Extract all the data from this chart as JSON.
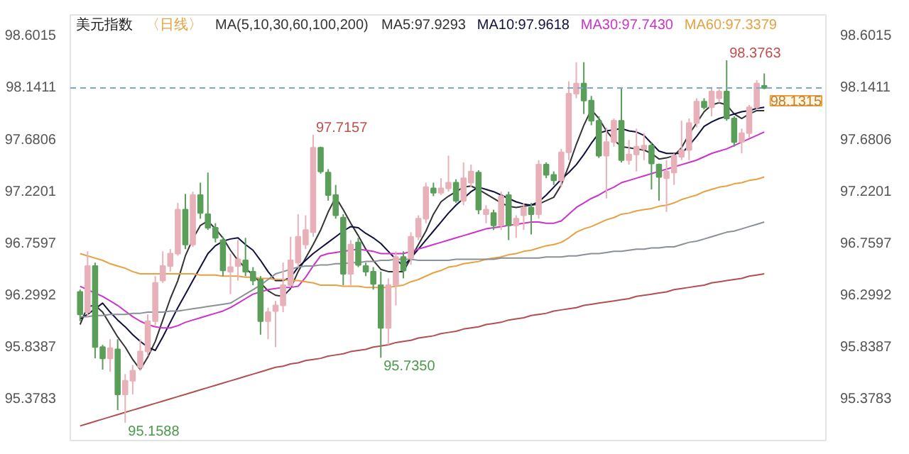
{
  "chart_data": {
    "type": "candlestick",
    "title": "美元指数",
    "subtitle": "〈日线〉",
    "annotations": [
      "MA(5,10,30,60,100,200)",
      "98.3763",
      "97.7157",
      "95.7350",
      "95.1588"
    ],
    "categories": [
      null,
      null,
      null,
      null,
      null,
      null,
      null,
      null,
      null,
      null,
      null,
      null,
      null,
      null,
      null,
      null,
      null,
      null,
      null,
      null,
      null,
      null,
      null,
      null,
      null,
      null,
      null,
      null,
      null,
      null,
      null,
      null,
      null,
      null,
      null,
      null,
      null,
      null,
      null,
      null,
      null,
      null,
      null,
      null,
      null,
      null,
      null,
      null,
      null,
      null,
      null,
      null,
      null,
      null,
      null,
      null,
      null,
      null,
      null,
      null,
      null,
      null,
      null,
      null,
      null,
      null,
      null,
      null,
      null,
      null,
      null,
      null,
      null,
      null,
      null,
      null,
      null,
      null,
      null,
      null,
      null,
      null,
      null,
      null,
      null,
      null,
      null,
      null,
      null,
      null,
      null,
      null
    ],
    "ohlc": [
      [
        96.32,
        96.34,
        96.06,
        96.12
      ],
      [
        96.14,
        96.68,
        96.1,
        96.55
      ],
      [
        96.55,
        96.58,
        95.73,
        95.83
      ],
      [
        95.83,
        95.85,
        95.63,
        95.73
      ],
      [
        95.73,
        95.9,
        95.61,
        95.82
      ],
      [
        95.81,
        95.9,
        95.27,
        95.41
      ],
      [
        95.41,
        95.59,
        95.1588,
        95.53
      ],
      [
        95.53,
        95.67,
        95.41,
        95.62
      ],
      [
        95.65,
        95.9,
        95.62,
        95.79
      ],
      [
        95.79,
        96.12,
        95.75,
        96.06
      ],
      [
        96.06,
        96.46,
        96.02,
        96.4
      ],
      [
        96.42,
        96.68,
        96.4,
        96.55
      ],
      [
        96.55,
        96.7,
        96.5,
        96.66
      ],
      [
        96.66,
        97.11,
        96.64,
        97.05
      ],
      [
        97.05,
        97.19,
        96.7,
        96.74
      ],
      [
        96.74,
        97.21,
        96.72,
        97.18
      ],
      [
        97.18,
        97.29,
        96.97,
        97.02
      ],
      [
        97.01,
        97.38,
        96.87,
        96.89
      ],
      [
        96.89,
        96.93,
        96.76,
        96.8
      ],
      [
        96.78,
        96.81,
        96.46,
        96.51
      ],
      [
        96.5,
        96.66,
        96.3,
        96.54
      ],
      [
        96.55,
        96.78,
        96.42,
        96.61
      ],
      [
        96.6,
        96.8,
        96.46,
        96.5
      ],
      [
        96.5,
        96.54,
        96.38,
        96.42
      ],
      [
        96.43,
        96.46,
        95.94,
        96.06
      ],
      [
        96.06,
        96.18,
        95.9,
        96.14
      ],
      [
        96.15,
        96.24,
        95.83,
        96.2
      ],
      [
        96.2,
        96.58,
        96.14,
        96.38
      ],
      [
        96.38,
        96.81,
        96.36,
        96.6
      ],
      [
        96.58,
        97.01,
        96.54,
        96.81
      ],
      [
        96.74,
        97.0,
        96.7,
        96.87
      ],
      [
        96.85,
        97.7157,
        96.81,
        97.6
      ],
      [
        97.6,
        97.61,
        97.37,
        97.39
      ],
      [
        97.38,
        97.41,
        97.13,
        97.18
      ],
      [
        97.18,
        97.27,
        96.97,
        97.0
      ],
      [
        96.98,
        97.01,
        96.38,
        96.48
      ],
      [
        96.48,
        96.78,
        96.38,
        96.74
      ],
      [
        96.76,
        96.8,
        96.54,
        96.56
      ],
      [
        96.55,
        96.58,
        96.46,
        96.5
      ],
      [
        96.5,
        96.54,
        96.34,
        96.39
      ],
      [
        96.38,
        96.5,
        95.735,
        96.0
      ],
      [
        96.0,
        96.44,
        95.85,
        96.38
      ],
      [
        96.38,
        96.68,
        96.2,
        96.63
      ],
      [
        96.63,
        96.68,
        96.44,
        96.51
      ],
      [
        96.62,
        96.85,
        96.56,
        96.81
      ],
      [
        96.81,
        97.0,
        96.78,
        96.97
      ],
      [
        96.97,
        97.29,
        96.93,
        97.25
      ],
      [
        97.24,
        97.29,
        97.17,
        97.2
      ],
      [
        97.2,
        97.33,
        97.18,
        97.24
      ],
      [
        97.24,
        97.53,
        97.21,
        97.29
      ],
      [
        97.29,
        97.32,
        97.11,
        97.13
      ],
      [
        97.13,
        97.47,
        97.09,
        97.33
      ],
      [
        97.29,
        97.45,
        97.25,
        97.39
      ],
      [
        97.38,
        97.4,
        97.01,
        97.05
      ],
      [
        97.01,
        97.09,
        96.93,
        97.05
      ],
      [
        97.02,
        97.05,
        96.87,
        96.91
      ],
      [
        96.91,
        97.21,
        96.87,
        97.17
      ],
      [
        97.18,
        97.21,
        96.78,
        96.91
      ],
      [
        96.91,
        97.0,
        96.8,
        96.97
      ],
      [
        97.0,
        97.11,
        96.87,
        97.07
      ],
      [
        97.07,
        97.11,
        96.83,
        97.01
      ],
      [
        97.01,
        97.49,
        96.97,
        97.45
      ],
      [
        97.45,
        97.47,
        97.33,
        97.36
      ],
      [
        97.36,
        97.39,
        97.27,
        97.31
      ],
      [
        97.31,
        97.59,
        97.25,
        97.56
      ],
      [
        97.56,
        98.19,
        97.49,
        98.08
      ],
      [
        98.08,
        98.36,
        98.04,
        98.17
      ],
      [
        98.17,
        98.36,
        97.9,
        98.02
      ],
      [
        98.02,
        98.06,
        97.8,
        97.84
      ],
      [
        97.84,
        97.88,
        97.51,
        97.53
      ],
      [
        97.53,
        97.78,
        97.15,
        97.65
      ],
      [
        97.65,
        97.86,
        97.61,
        97.84
      ],
      [
        97.84,
        98.13,
        97.47,
        97.49
      ],
      [
        97.49,
        97.67,
        97.45,
        97.54
      ],
      [
        97.54,
        97.77,
        97.39,
        97.61
      ],
      [
        97.59,
        97.73,
        97.49,
        97.62
      ],
      [
        97.62,
        97.65,
        97.23,
        97.46
      ],
      [
        97.45,
        97.46,
        97.13,
        97.34
      ],
      [
        97.33,
        97.49,
        97.03,
        97.39
      ],
      [
        97.38,
        97.55,
        97.27,
        97.53
      ],
      [
        97.52,
        97.84,
        97.49,
        97.58
      ],
      [
        97.58,
        97.86,
        97.49,
        97.82
      ],
      [
        97.82,
        98.04,
        97.78,
        98.01
      ],
      [
        98.01,
        98.04,
        97.94,
        97.96
      ],
      [
        97.96,
        98.14,
        97.88,
        98.1
      ],
      [
        98.04,
        98.12,
        98.0,
        98.1
      ],
      [
        98.1,
        98.3763,
        97.84,
        97.86
      ],
      [
        97.86,
        97.88,
        97.61,
        97.65
      ],
      [
        97.65,
        97.77,
        97.55,
        97.73
      ],
      [
        97.73,
        97.98,
        97.69,
        97.96
      ],
      [
        97.96,
        98.2,
        97.94,
        98.17
      ],
      [
        98.15,
        98.26,
        98.12,
        98.1315
      ]
    ],
    "colors": [
      "#5a9e5a",
      "#e8b0b8",
      "#5a9e5a",
      "#5a9e5a",
      "#e8b0b8",
      "#5a9e5a",
      "#e8b0b8",
      "#e8b0b8",
      "#e8b0b8",
      "#e8b0b8",
      "#e8b0b8",
      "#e8b0b8",
      "#e8b0b8",
      "#e8b0b8",
      "#5a9e5a",
      "#e8b0b8",
      "#5a9e5a",
      "#5a9e5a",
      "#5a9e5a",
      "#5a9e5a",
      "#e8b0b8",
      "#e8b0b8",
      "#5a9e5a",
      "#5a9e5a",
      "#5a9e5a",
      "#e8b0b8",
      "#e8b0b8",
      "#e8b0b8",
      "#e8b0b8",
      "#e8b0b8",
      "#e8b0b8",
      "#e8b0b8",
      "#5a9e5a",
      "#5a9e5a",
      "#5a9e5a",
      "#5a9e5a",
      "#e8b0b8",
      "#5a9e5a",
      "#5a9e5a",
      "#5a9e5a",
      "#5a9e5a",
      "#e8b0b8",
      "#e8b0b8",
      "#5a9e5a",
      "#e8b0b8",
      "#e8b0b8",
      "#e8b0b8",
      "#5a9e5a",
      "#e8b0b8",
      "#e8b0b8",
      "#5a9e5a",
      "#e8b0b8",
      "#e8b0b8",
      "#5a9e5a",
      "#e8b0b8",
      "#5a9e5a",
      "#e8b0b8",
      "#5a9e5a",
      "#e8b0b8",
      "#e8b0b8",
      "#5a9e5a",
      "#e8b0b8",
      "#5a9e5a",
      "#5a9e5a",
      "#e8b0b8",
      "#e8b0b8",
      "#e8b0b8",
      "#5a9e5a",
      "#5a9e5a",
      "#5a9e5a",
      "#e8b0b8",
      "#e8b0b8",
      "#5a9e5a",
      "#e8b0b8",
      "#e8b0b8",
      "#e8b0b8",
      "#5a9e5a",
      "#5a9e5a",
      "#e8b0b8",
      "#e8b0b8",
      "#e8b0b8",
      "#e8b0b8",
      "#e8b0b8",
      "#5a9e5a",
      "#e8b0b8",
      "#e8b0b8",
      "#5a9e5a",
      "#5a9e5a",
      "#e8b0b8",
      "#e8b0b8",
      "#e8b0b8",
      "#5a9e5a"
    ],
    "series": [
      {
        "type": "line",
        "name": "MA5:97.9293",
        "color": "#333333",
        "values": [
          96.03,
          96.19,
          96.2,
          96.14,
          96.03,
          95.92,
          95.83,
          95.72,
          95.63,
          95.74,
          95.88,
          96.07,
          96.26,
          96.42,
          96.64,
          96.79,
          96.91,
          96.95,
          96.88,
          96.8,
          96.69,
          96.6,
          96.53,
          96.47,
          96.4,
          96.33,
          96.29,
          96.28,
          96.35,
          96.5,
          96.62,
          96.74,
          96.87,
          97.03,
          97.16,
          97.05,
          96.93,
          96.82,
          96.7,
          96.6,
          96.52,
          96.5,
          96.5,
          96.5,
          96.62,
          96.74,
          96.86,
          97.01,
          97.12,
          97.17,
          97.21,
          97.25,
          97.26,
          97.23,
          97.19,
          97.15,
          97.11,
          97.08,
          97.07,
          97.08,
          97.09,
          97.1,
          97.13,
          97.16,
          97.27,
          97.44,
          97.63,
          97.8,
          97.94,
          97.86,
          97.75,
          97.67,
          97.61,
          97.6,
          97.59,
          97.58,
          97.55,
          97.5,
          97.51,
          97.53,
          97.6,
          97.72,
          97.82,
          97.92,
          97.98,
          98.0,
          97.98,
          97.9,
          97.86,
          97.9,
          97.93,
          97.93
        ]
      },
      {
        "type": "line",
        "name": "MA10:97.9618",
        "color": "#101040",
        "values": [
          96.08,
          96.12,
          96.17,
          96.22,
          96.14,
          96.07,
          96.01,
          95.94,
          95.88,
          95.83,
          95.8,
          95.92,
          96.05,
          96.18,
          96.3,
          96.42,
          96.54,
          96.66,
          96.73,
          96.77,
          96.79,
          96.8,
          96.74,
          96.69,
          96.6,
          96.5,
          96.42,
          96.42,
          96.45,
          96.54,
          96.6,
          96.66,
          96.71,
          96.76,
          96.81,
          96.86,
          96.9,
          96.89,
          96.84,
          96.8,
          96.75,
          96.68,
          96.61,
          96.55,
          96.62,
          96.7,
          96.78,
          96.86,
          96.94,
          97.02,
          97.09,
          97.15,
          97.21,
          97.25,
          97.23,
          97.21,
          97.18,
          97.15,
          97.12,
          97.1,
          97.09,
          97.12,
          97.18,
          97.25,
          97.32,
          97.38,
          97.45,
          97.54,
          97.64,
          97.73,
          97.75,
          97.76,
          97.77,
          97.75,
          97.74,
          97.71,
          97.64,
          97.57,
          97.55,
          97.55,
          97.55,
          97.62,
          97.7,
          97.79,
          97.83,
          97.86,
          97.88,
          97.9,
          97.92,
          97.93,
          97.95,
          97.96
        ]
      },
      {
        "type": "line",
        "name": "MA30:97.7430",
        "color": "#cc33cc",
        "values": [
          96.37,
          96.34,
          96.31,
          96.28,
          96.24,
          96.2,
          96.15,
          96.1,
          96.06,
          96.03,
          96.01,
          96.0,
          96.0,
          96.02,
          96.05,
          96.07,
          96.09,
          96.11,
          96.13,
          96.15,
          96.18,
          96.22,
          96.26,
          96.3,
          96.32,
          96.34,
          96.35,
          96.36,
          96.36,
          96.37,
          96.45,
          96.55,
          96.64,
          96.66,
          96.67,
          96.68,
          96.69,
          96.7,
          96.69,
          96.68,
          96.66,
          96.66,
          96.66,
          96.66,
          96.68,
          96.7,
          96.72,
          96.74,
          96.76,
          96.78,
          96.8,
          96.82,
          96.84,
          96.86,
          96.88,
          96.89,
          96.9,
          96.91,
          96.92,
          96.93,
          96.94,
          96.94,
          96.93,
          96.93,
          96.95,
          97.01,
          97.07,
          97.11,
          97.15,
          97.18,
          97.22,
          97.25,
          97.29,
          97.31,
          97.33,
          97.35,
          97.37,
          97.39,
          97.41,
          97.43,
          97.45,
          97.47,
          97.49,
          97.52,
          97.55,
          97.57,
          97.59,
          97.62,
          97.65,
          97.68,
          97.71,
          97.74
        ]
      },
      {
        "type": "line",
        "name": "MA60:97.3379",
        "color": "#e8a040",
        "values": [
          96.66,
          96.64,
          96.62,
          96.6,
          96.57,
          96.55,
          96.53,
          96.5,
          96.48,
          96.48,
          96.48,
          96.48,
          96.48,
          96.48,
          96.48,
          96.48,
          96.47,
          96.47,
          96.47,
          96.46,
          96.46,
          96.46,
          96.45,
          96.45,
          96.44,
          96.44,
          96.43,
          96.43,
          96.42,
          96.42,
          96.41,
          96.4,
          96.38,
          96.38,
          96.38,
          96.37,
          96.37,
          96.37,
          96.36,
          96.36,
          96.36,
          96.36,
          96.37,
          96.38,
          96.41,
          96.43,
          96.46,
          96.49,
          96.51,
          96.54,
          96.55,
          96.57,
          96.58,
          96.59,
          96.61,
          96.62,
          96.63,
          96.65,
          96.66,
          96.68,
          96.69,
          96.71,
          96.73,
          96.74,
          96.76,
          96.8,
          96.85,
          96.88,
          96.9,
          96.93,
          96.96,
          96.98,
          97.01,
          97.02,
          97.04,
          97.05,
          97.06,
          97.08,
          97.09,
          97.11,
          97.14,
          97.16,
          97.18,
          97.21,
          97.23,
          97.25,
          97.26,
          97.28,
          97.29,
          97.31,
          97.32,
          97.34
        ]
      },
      {
        "type": "line",
        "color": "#8a9098",
        "values": [
          96.1,
          96.1,
          96.11,
          96.11,
          96.12,
          96.12,
          96.12,
          96.13,
          96.13,
          96.14,
          96.14,
          96.14,
          96.15,
          96.15,
          96.16,
          96.17,
          96.18,
          96.19,
          96.2,
          96.21,
          96.22,
          96.26,
          96.3,
          96.34,
          96.38,
          96.43,
          96.48,
          96.5,
          96.52,
          96.54,
          96.55,
          96.55,
          96.56,
          96.56,
          96.57,
          96.57,
          96.58,
          96.58,
          96.59,
          96.59,
          96.6,
          96.6,
          96.61,
          96.61,
          96.61,
          96.6,
          96.6,
          96.6,
          96.6,
          96.6,
          96.61,
          96.61,
          96.61,
          96.61,
          96.61,
          96.61,
          96.62,
          96.62,
          96.62,
          96.62,
          96.62,
          96.62,
          96.63,
          96.63,
          96.63,
          96.64,
          96.64,
          96.65,
          96.66,
          96.66,
          96.67,
          96.68,
          96.68,
          96.69,
          96.7,
          96.7,
          96.71,
          96.71,
          96.72,
          96.72,
          96.74,
          96.76,
          96.77,
          96.79,
          96.81,
          96.83,
          96.85,
          96.86,
          96.88,
          96.9,
          96.92,
          96.94
        ]
      },
      {
        "type": "line",
        "color": "#b05050",
        "values": [
          95.13,
          95.15,
          95.17,
          95.19,
          95.21,
          95.23,
          95.25,
          95.27,
          95.29,
          95.31,
          95.33,
          95.35,
          95.37,
          95.39,
          95.41,
          95.43,
          95.45,
          95.47,
          95.49,
          95.51,
          95.53,
          95.55,
          95.57,
          95.59,
          95.61,
          95.63,
          95.65,
          95.66,
          95.68,
          95.69,
          95.71,
          95.72,
          95.73,
          95.75,
          95.76,
          95.77,
          95.79,
          95.8,
          95.81,
          95.83,
          95.84,
          95.85,
          95.87,
          95.88,
          95.89,
          95.91,
          95.92,
          95.93,
          95.95,
          95.96,
          95.97,
          95.99,
          96.0,
          96.01,
          96.03,
          96.04,
          96.05,
          96.07,
          96.08,
          96.09,
          96.11,
          96.12,
          96.13,
          96.15,
          96.16,
          96.17,
          96.18,
          96.2,
          96.21,
          96.22,
          96.23,
          96.24,
          96.25,
          96.26,
          96.28,
          96.29,
          96.3,
          96.31,
          96.32,
          96.34,
          96.35,
          96.36,
          96.37,
          96.38,
          96.4,
          96.41,
          96.42,
          96.43,
          96.44,
          96.46,
          96.47,
          96.48
        ]
      }
    ],
    "ref_lines": [
      {
        "axis": "y",
        "value": 98.1315,
        "label": "98.1315",
        "color": "#7aa7d8",
        "line_style": "dashed"
      }
    ],
    "ylim": [
      95.0,
      98.78
    ],
    "yticks": [
      98.6015,
      98.1411,
      97.6806,
      97.2201,
      96.7597,
      96.2992,
      95.8387,
      95.3783
    ],
    "y2lim": [
      95.0,
      98.78
    ],
    "y2ticks": [
      98.6015,
      98.1411,
      97.6806,
      97.2201,
      96.7597,
      96.2992,
      95.8387,
      95.3783
    ],
    "tick_labels": "y",
    "legend": "top"
  }
}
